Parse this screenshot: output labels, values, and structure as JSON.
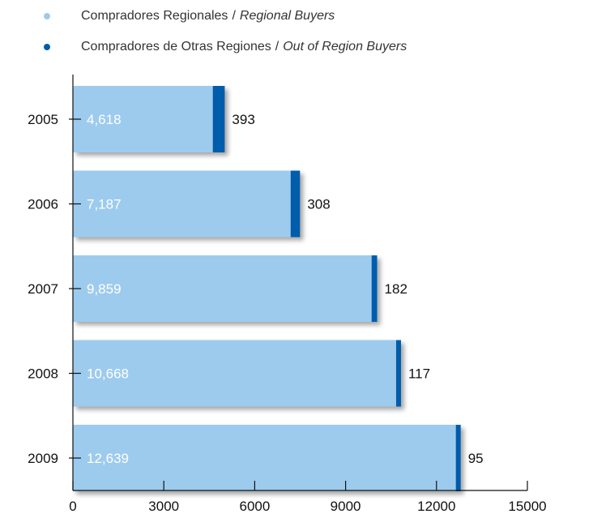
{
  "legend": [
    {
      "label_es": "Compradores Regionales",
      "separator": "/",
      "label_en": "Regional Buyers",
      "color": "#9dcbee"
    },
    {
      "label_es": "Compradores de Otras Regiones",
      "separator": "/",
      "label_en": "Out of Region Buyers",
      "color": "#005dab"
    }
  ],
  "chart_data": {
    "type": "bar",
    "orientation": "horizontal",
    "stacked": true,
    "categories": [
      "2005",
      "2006",
      "2007",
      "2008",
      "2009"
    ],
    "series": [
      {
        "name": "Compradores Regionales / Regional Buyers",
        "values": [
          4618,
          7187,
          9859,
          10668,
          12639
        ],
        "labels": [
          "4,618",
          "7,187",
          "9,859",
          "10,668",
          "12,639"
        ],
        "color": "#9dcbee"
      },
      {
        "name": "Compradores de Otras Regiones / Out of Region Buyers",
        "values": [
          393,
          308,
          182,
          117,
          95
        ],
        "labels": [
          "393",
          "308",
          "182",
          "117",
          "95"
        ],
        "color": "#005dab"
      }
    ],
    "xlim": [
      0,
      15000
    ],
    "xticks": [
      0,
      3000,
      6000,
      9000,
      12000,
      15000
    ],
    "title": "",
    "xlabel": "",
    "ylabel": "",
    "grid": false,
    "legend_position": "top-left"
  }
}
